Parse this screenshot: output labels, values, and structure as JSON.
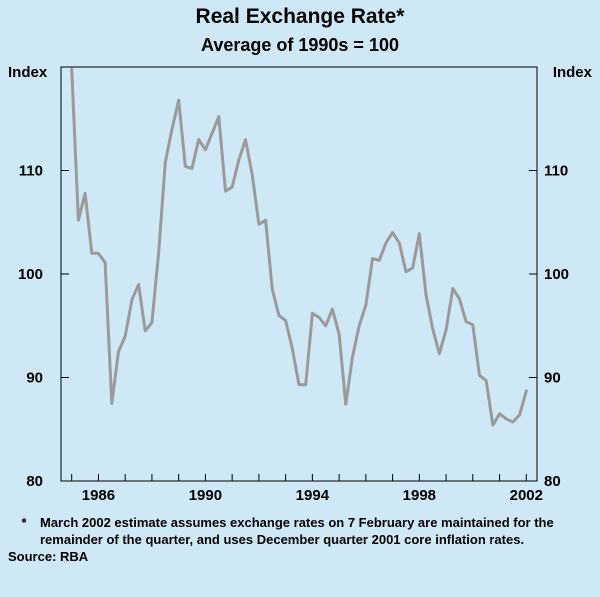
{
  "chart_data": {
    "type": "line",
    "title": "Real Exchange Rate*",
    "subtitle": "Average of 1990s = 100",
    "ylabel_left": "Index",
    "ylabel_right": "Index",
    "ylim": [
      80,
      120
    ],
    "xlim": [
      1984.6,
      2002.4
    ],
    "yticks": [
      80,
      90,
      100,
      110
    ],
    "xticks": [
      "1986",
      "1990",
      "1994",
      "1998",
      "2002"
    ],
    "xtick_values": [
      1986,
      1990,
      1994,
      1998,
      2002
    ],
    "line_color": "#9a9a9a",
    "grid": false,
    "series": [
      {
        "name": "Real Exchange Rate",
        "x": [
          1985.0,
          1985.25,
          1985.5,
          1985.75,
          1986.0,
          1986.25,
          1986.5,
          1986.75,
          1987.0,
          1987.25,
          1987.5,
          1987.75,
          1988.0,
          1988.25,
          1988.5,
          1988.75,
          1989.0,
          1989.25,
          1989.5,
          1989.75,
          1990.0,
          1990.25,
          1990.5,
          1990.75,
          1991.0,
          1991.25,
          1991.5,
          1991.75,
          1992.0,
          1992.25,
          1992.5,
          1992.75,
          1993.0,
          1993.25,
          1993.5,
          1993.75,
          1994.0,
          1994.25,
          1994.5,
          1994.75,
          1995.0,
          1995.25,
          1995.5,
          1995.75,
          1996.0,
          1996.25,
          1996.5,
          1996.75,
          1997.0,
          1997.25,
          1997.5,
          1997.75,
          1998.0,
          1998.25,
          1998.5,
          1998.75,
          1999.0,
          1999.25,
          1999.5,
          1999.75,
          2000.0,
          2000.25,
          2000.5,
          2000.75,
          2001.0,
          2001.25,
          2001.5,
          2001.75,
          2002.0
        ],
        "values": [
          119.8,
          105.2,
          107.8,
          102.0,
          102.0,
          101.1,
          87.5,
          92.5,
          94.0,
          97.5,
          99.0,
          94.5,
          95.3,
          102.0,
          110.8,
          114.0,
          116.8,
          110.4,
          110.2,
          113.0,
          112.0,
          113.6,
          115.2,
          108.0,
          108.4,
          111.0,
          113.0,
          109.6,
          104.8,
          105.2,
          98.5,
          96.0,
          95.5,
          92.8,
          89.3,
          89.3,
          96.2,
          95.8,
          95.0,
          96.6,
          94.2,
          87.4,
          92.0,
          95.0,
          97.0,
          101.5,
          101.3,
          103.0,
          104.0,
          103.0,
          100.2,
          100.6,
          103.9,
          98.0,
          94.7,
          92.3,
          94.6,
          98.6,
          97.6,
          95.4,
          95.1,
          90.2,
          89.7,
          85.4,
          86.5,
          86.0,
          85.7,
          86.4,
          88.7
        ]
      }
    ]
  },
  "footnote": {
    "mark": "*",
    "text": "March 2002 estimate assumes exchange rates on 7 February are maintained for the remainder of the quarter, and uses December quarter 2001 core inflation rates.",
    "source": "Source: RBA"
  }
}
